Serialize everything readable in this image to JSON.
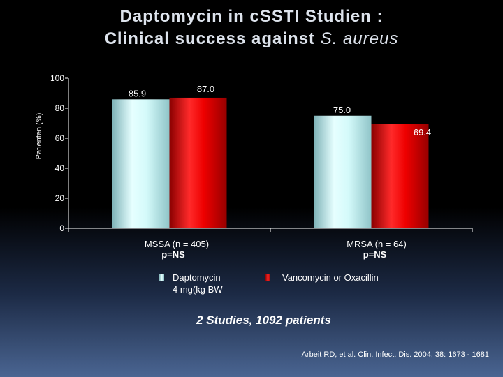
{
  "title": {
    "line1": "Daptomycin in cSSTI Studien :",
    "line2_prefix": "Clinical success against ",
    "line2_species": "S. aureus"
  },
  "chart_data": {
    "type": "bar",
    "title": "Daptomycin in cSSTI Studien : Clinical success against S. aureus",
    "ylabel": "Patienten (%)",
    "ylim": [
      0,
      100
    ],
    "yticks": [
      0,
      20,
      40,
      60,
      80,
      100
    ],
    "categories": [
      "MSSA (n = 405)",
      "MRSA (n = 64)"
    ],
    "category_notes": [
      "p=NS",
      "p=NS"
    ],
    "series": [
      {
        "name": "Daptomycin 4 mg(kg BW",
        "values": [
          85.9,
          75.0
        ],
        "labels": [
          "85.9",
          "75.0"
        ],
        "color": "#bff5f5"
      },
      {
        "name": "Vancomycin or Oxacillin",
        "values": [
          87.0,
          69.4
        ],
        "labels": [
          "87.0",
          "69.4"
        ],
        "color": "#e80000"
      }
    ],
    "grid": false,
    "legend_position": "bottom"
  },
  "legend": {
    "dapto_line1": "Daptomycin",
    "dapto_line2": "4 mg(kg BW",
    "vanco": "Vancomycin or Oxacillin"
  },
  "footer": {
    "studies": "2 Studies, 1092 patients",
    "citation": "Arbeit RD, et al. Clin. Infect. Dis. 2004, 38: 1673 - 1681"
  }
}
